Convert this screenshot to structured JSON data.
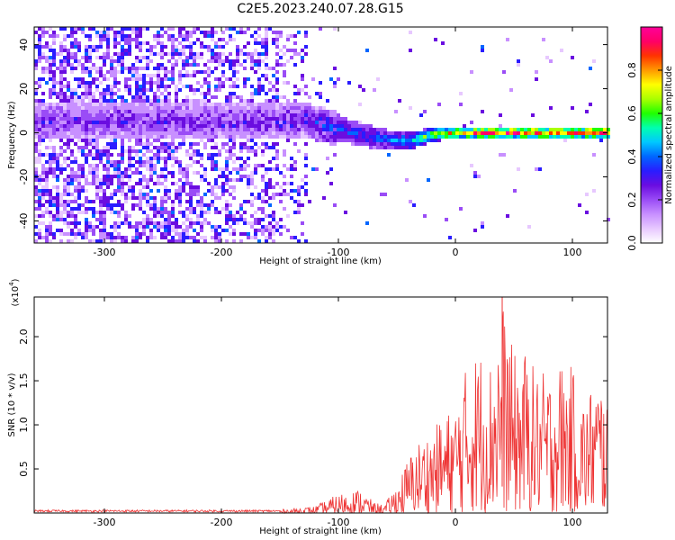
{
  "title": "C2E5.2023.240.07.28.G15",
  "chart_data": [
    {
      "type": "heatmap",
      "name": "spectrogram",
      "xlabel": "Height of straight line (km)",
      "ylabel": "Frequency (Hz)",
      "xlim": [
        -360,
        130
      ],
      "ylim": [
        -50,
        48
      ],
      "xticks": [
        -300,
        -200,
        -100,
        0,
        100
      ],
      "yticks": [
        -40,
        -20,
        0,
        20,
        40
      ],
      "colorbar": {
        "label": "Normalized spectral amplitude",
        "range": [
          0.0,
          1.0
        ],
        "ticks": [
          0.0,
          0.2,
          0.4,
          0.6,
          0.8
        ],
        "ticklabels": [
          "0.0",
          "0.2",
          "0.4",
          "0.6",
          "0.8"
        ],
        "colors": [
          "#ffffff",
          "#e7c8ff",
          "#c890ff",
          "#9a4cf6",
          "#6a0de0",
          "#2a1cff",
          "#0066ff",
          "#00c8ff",
          "#00ffb0",
          "#20ff00",
          "#aaff00",
          "#ffff00",
          "#ff9900",
          "#ff3300",
          "#ff0066",
          "#ff0099"
        ]
      },
      "track": {
        "x": [
          -150,
          -130,
          -100,
          -80,
          -60,
          -40,
          -20,
          0,
          20,
          40,
          60,
          80,
          100,
          120,
          130
        ],
        "freq": [
          5,
          6,
          2,
          -1,
          -3,
          -4,
          -1,
          0,
          0,
          0,
          0,
          0,
          0,
          0,
          0
        ],
        "peak_amplitude": [
          0.3,
          0.35,
          0.4,
          0.38,
          0.4,
          0.5,
          0.7,
          0.85,
          0.9,
          0.95,
          0.95,
          0.95,
          0.95,
          0.95,
          0.95
        ]
      }
    },
    {
      "type": "line",
      "name": "snr",
      "xlabel": "Height of straight line (km)",
      "ylabel": "SNR (10 * v/v)",
      "yscale_label": "(x10",
      "yscale_exp": "4",
      "yscale_close": ")",
      "xlim": [
        -360,
        130
      ],
      "ylim": [
        0,
        2.45
      ],
      "xticks": [
        -300,
        -200,
        -100,
        0,
        100
      ],
      "yticks": [
        0.5,
        1.0,
        1.5,
        2.0
      ],
      "yticklabels": [
        "0.5",
        "1.0",
        "1.5",
        "2.0"
      ],
      "color": "#ee3333",
      "envelope": {
        "x": [
          -360,
          -150,
          -120,
          -100,
          -90,
          -80,
          -70,
          -60,
          -50,
          -40,
          -30,
          -20,
          -10,
          0,
          10,
          20,
          30,
          40,
          50,
          60,
          70,
          80,
          90,
          100,
          110,
          120,
          128
        ],
        "max": [
          0.03,
          0.04,
          0.08,
          0.22,
          0.26,
          0.28,
          0.12,
          0.1,
          0.35,
          0.65,
          0.85,
          0.95,
          1.1,
          1.25,
          1.7,
          1.9,
          1.75,
          2.45,
          1.8,
          1.85,
          1.6,
          1.6,
          1.75,
          1.65,
          1.3,
          1.55,
          1.5
        ]
      }
    }
  ]
}
